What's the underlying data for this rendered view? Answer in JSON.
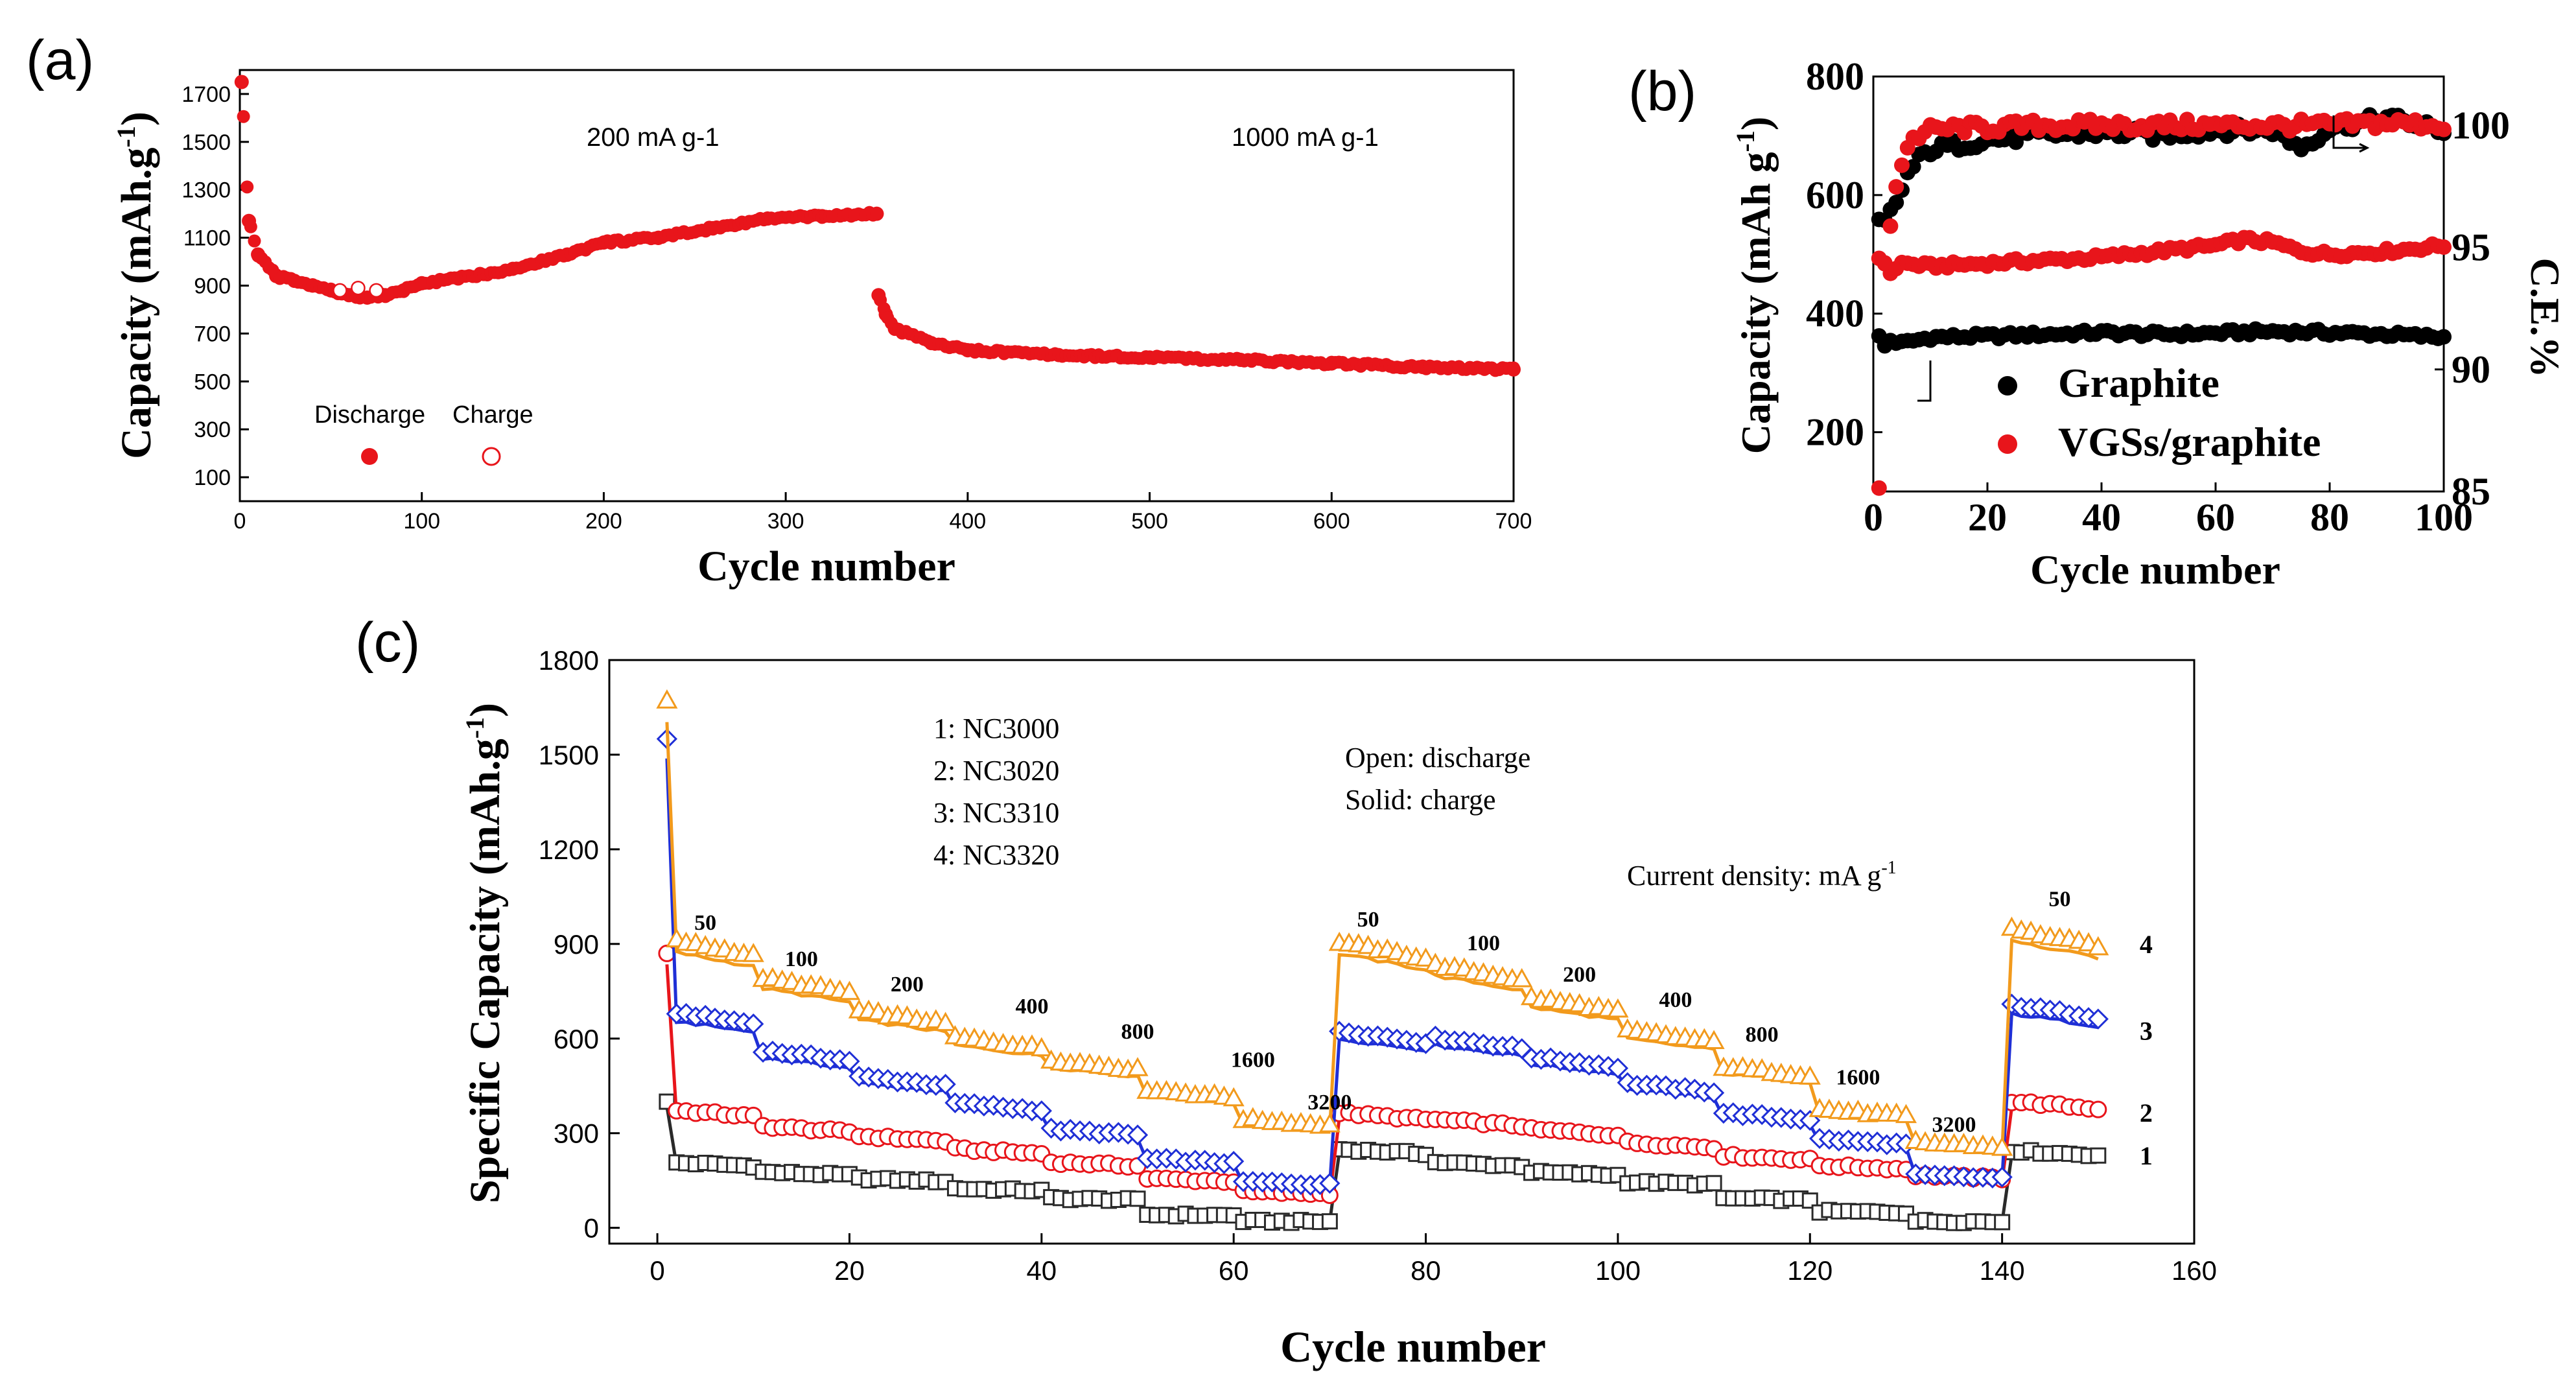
{
  "chart_data": [
    {
      "panel": "(a)",
      "type": "scatter",
      "title": "",
      "xlabel": "Cycle number",
      "ylabel": "Capacity (mAh.g-1)",
      "xlim": [
        0,
        700
      ],
      "ylim": [
        0,
        1800
      ],
      "xticks": [
        0,
        100,
        200,
        300,
        400,
        500,
        600,
        700
      ],
      "yticks": [
        100,
        300,
        500,
        700,
        900,
        1100,
        1300,
        1500,
        1700
      ],
      "annotations": [
        "200 mA g-1",
        "1000 mA g-1"
      ],
      "legend": {
        "discharge": "Discharge",
        "charge": "Charge"
      },
      "series": [
        {
          "name": "Discharge",
          "x": [
            1,
            5,
            10,
            20,
            30,
            40,
            50,
            60,
            70,
            80,
            90,
            100,
            120,
            150,
            180,
            200,
            230,
            260,
            290,
            320,
            350,
            351,
            355,
            360,
            380,
            400,
            450,
            500,
            550,
            600,
            650,
            700
          ],
          "y": [
            1750,
            1170,
            1030,
            940,
            920,
            900,
            880,
            860,
            850,
            860,
            880,
            910,
            930,
            970,
            1030,
            1080,
            1100,
            1140,
            1180,
            1190,
            1200,
            860,
            780,
            720,
            660,
            630,
            610,
            600,
            590,
            575,
            560,
            550
          ]
        },
        {
          "name": "Charge",
          "x": [
            55,
            65,
            75
          ],
          "y": [
            880,
            890,
            880
          ]
        }
      ]
    },
    {
      "panel": "(b)",
      "type": "scatter",
      "xlabel": "Cycle number",
      "ylabel": "Capacity (mAh g-1)",
      "y2label": "C.E.%",
      "xlim": [
        0,
        100
      ],
      "ylim": [
        100,
        800
      ],
      "y2lim": [
        85,
        102
      ],
      "xticks": [
        0,
        20,
        40,
        60,
        80,
        100
      ],
      "yticks": [
        200,
        400,
        600,
        800
      ],
      "y2ticks": [
        85,
        90,
        95,
        100
      ],
      "series": [
        {
          "name": "Graphite",
          "color": "#000000",
          "axis": "left",
          "x": [
            1,
            2,
            3,
            5,
            10,
            20,
            30,
            40,
            50,
            60,
            70,
            80,
            90,
            100
          ],
          "y": [
            360,
            345,
            355,
            350,
            360,
            362,
            365,
            368,
            365,
            367,
            370,
            368,
            365,
            360
          ]
        },
        {
          "name": "VGSs/graphite",
          "color": "#e8151b",
          "axis": "left",
          "x": [
            1,
            2,
            3,
            5,
            10,
            20,
            30,
            40,
            50,
            60,
            65,
            70,
            75,
            80,
            90,
            100
          ],
          "y": [
            110,
            480,
            470,
            485,
            480,
            485,
            490,
            495,
            505,
            515,
            525,
            520,
            505,
            500,
            505,
            515
          ]
        },
        {
          "name": "Graphite C.E.",
          "color": "#000000",
          "axis": "right",
          "x": [
            2,
            4,
            6,
            8,
            10,
            15,
            20,
            30,
            40,
            50,
            60,
            70,
            75,
            80,
            90,
            100
          ],
          "y": [
            96,
            96.8,
            98,
            98.6,
            99,
            99.2,
            99.4,
            99.6,
            99.7,
            99.6,
            99.8,
            99.8,
            99.1,
            99.9,
            100.3,
            99.8
          ]
        },
        {
          "name": "VGSs/graphite C.E.",
          "color": "#e8151b",
          "axis": "right",
          "x": [
            2,
            4,
            6,
            8,
            10,
            15,
            20,
            30,
            40,
            50,
            60,
            70,
            80,
            90,
            100
          ],
          "y": [
            94.5,
            97.5,
            99.2,
            99.6,
            99.8,
            99.9,
            99.9,
            100,
            100,
            100,
            100,
            100,
            100,
            100.1,
            100
          ]
        }
      ],
      "legend": [
        "Graphite",
        "VGSs/graphite"
      ]
    },
    {
      "panel": "(c)",
      "type": "scatter",
      "xlabel": "Cycle number",
      "ylabel": "Specific Capacity (mAh.g-1)",
      "xlim": [
        -5,
        160
      ],
      "ylim": [
        -50,
        1800
      ],
      "xticks": [
        0,
        20,
        40,
        60,
        80,
        100,
        120,
        140,
        160
      ],
      "yticks": [
        0,
        300,
        600,
        900,
        1200,
        1500,
        1800
      ],
      "legend_text": [
        "1: NC3000",
        "2: NC3020",
        "3: NC3310",
        "4: NC3320"
      ],
      "notes": [
        "Open: discharge",
        "Solid: charge",
        "Current density: mA g-1"
      ],
      "rate_labels_first": [
        "50",
        "100",
        "200",
        "400",
        "800",
        "1600",
        "3200"
      ],
      "rate_labels_second": [
        "50",
        "100",
        "200",
        "400",
        "800",
        "1600",
        "3200"
      ],
      "rate_label_third": "50",
      "series_labels": [
        "4",
        "3",
        "2",
        "1"
      ],
      "segment_starts": [
        1,
        11,
        21,
        31,
        41,
        51,
        61,
        71,
        81,
        91,
        101,
        111,
        121,
        131,
        141,
        151
      ],
      "series": [
        {
          "name": "1",
          "color": "#2a2a2a",
          "y": [
            200,
            170,
            150,
            120,
            90,
            40,
            20,
            240,
            200,
            170,
            140,
            90,
            50,
            20,
            235
          ]
        },
        {
          "name": "2",
          "color": "#e8151b",
          "y": [
            360,
            310,
            280,
            240,
            200,
            150,
            110,
            350,
            330,
            300,
            260,
            220,
            190,
            160,
            385
          ]
        },
        {
          "name": "3",
          "color": "#1f2fd6",
          "y": [
            660,
            540,
            460,
            380,
            300,
            210,
            140,
            600,
            580,
            520,
            440,
            350,
            270,
            160,
            680
          ]
        },
        {
          "name": "4",
          "color": "#f29a1c",
          "y": [
            880,
            760,
            660,
            580,
            510,
            420,
            330,
            870,
            800,
            700,
            600,
            490,
            360,
            260,
            910
          ]
        }
      ],
      "first_cycle": {
        "1": 400,
        "2": 870,
        "3": 1550,
        "4": 1670
      }
    }
  ],
  "labels": {
    "a_letter": "(a)",
    "b_letter": "(b)",
    "c_letter": "(c)",
    "a_xlabel": "Cycle number",
    "a_ylabel": "Capacity (mAh.g",
    "a_ylabel_sup": "-1",
    "a_ylabel_end": ")",
    "a_ann1": "200 mA g-1",
    "a_ann2": "1000 mA g-1",
    "a_leg_discharge": "Discharge",
    "a_leg_charge": "Charge",
    "b_xlabel": "Cycle number",
    "b_ylabel": "Capacity (mAh g",
    "b_ylabel_sup": "-1",
    "b_ylabel_end": ")",
    "b_y2label": "C.E.%",
    "b_leg1": "Graphite",
    "b_leg2": "VGSs/graphite",
    "c_xlabel": "Cycle number",
    "c_ylabel": "Specific Capacity (mAh.g",
    "c_ylabel_sup": "-1",
    "c_ylabel_end": ")",
    "c_leg1": "1: NC3000",
    "c_leg2": "2: NC3020",
    "c_leg3": "3: NC3310",
    "c_leg4": "4: NC3320",
    "c_note1": "Open: discharge",
    "c_note2": "Solid: charge",
    "c_note3": "Current density: mA g",
    "c_note3_sup": "-1"
  },
  "colors": {
    "red": "#e8151b",
    "black": "#000000",
    "blue": "#1f2fd6",
    "orange": "#f29a1c",
    "gray": "#2a2a2a"
  }
}
